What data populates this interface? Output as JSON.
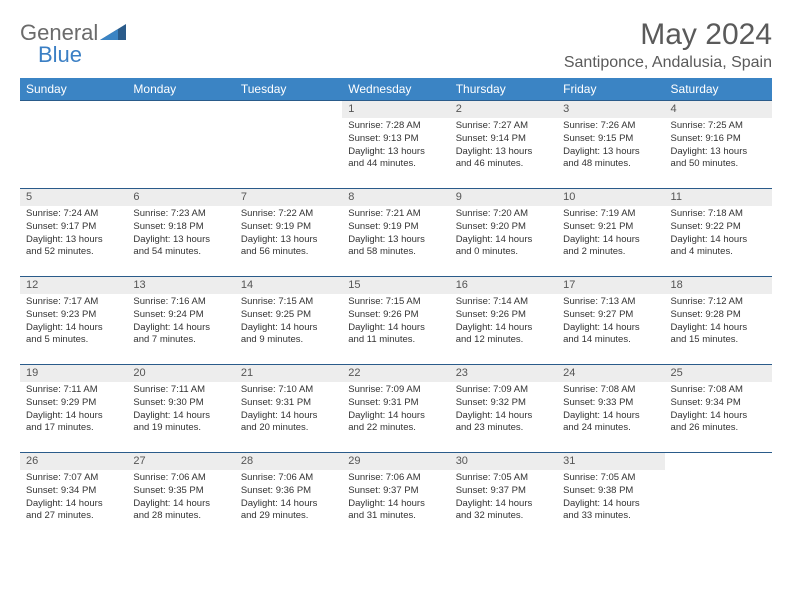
{
  "logo": {
    "word1": "General",
    "word2": "Blue"
  },
  "header": {
    "title": "May 2024",
    "location": "Santiponce, Andalusia, Spain"
  },
  "colors": {
    "header_bg": "#3b84c4",
    "header_fg": "#ffffff",
    "row_border": "#2a5b8a",
    "daynum_bg": "#ededed",
    "logo_gray": "#6b6b6b",
    "logo_blue": "#3b7fc4",
    "title_color": "#5a5a5a"
  },
  "dow": [
    "Sunday",
    "Monday",
    "Tuesday",
    "Wednesday",
    "Thursday",
    "Friday",
    "Saturday"
  ],
  "weeks": [
    [
      null,
      null,
      null,
      {
        "n": "1",
        "sr": "Sunrise: 7:28 AM",
        "ss": "Sunset: 9:13 PM",
        "d1": "Daylight: 13 hours",
        "d2": "and 44 minutes."
      },
      {
        "n": "2",
        "sr": "Sunrise: 7:27 AM",
        "ss": "Sunset: 9:14 PM",
        "d1": "Daylight: 13 hours",
        "d2": "and 46 minutes."
      },
      {
        "n": "3",
        "sr": "Sunrise: 7:26 AM",
        "ss": "Sunset: 9:15 PM",
        "d1": "Daylight: 13 hours",
        "d2": "and 48 minutes."
      },
      {
        "n": "4",
        "sr": "Sunrise: 7:25 AM",
        "ss": "Sunset: 9:16 PM",
        "d1": "Daylight: 13 hours",
        "d2": "and 50 minutes."
      }
    ],
    [
      {
        "n": "5",
        "sr": "Sunrise: 7:24 AM",
        "ss": "Sunset: 9:17 PM",
        "d1": "Daylight: 13 hours",
        "d2": "and 52 minutes."
      },
      {
        "n": "6",
        "sr": "Sunrise: 7:23 AM",
        "ss": "Sunset: 9:18 PM",
        "d1": "Daylight: 13 hours",
        "d2": "and 54 minutes."
      },
      {
        "n": "7",
        "sr": "Sunrise: 7:22 AM",
        "ss": "Sunset: 9:19 PM",
        "d1": "Daylight: 13 hours",
        "d2": "and 56 minutes."
      },
      {
        "n": "8",
        "sr": "Sunrise: 7:21 AM",
        "ss": "Sunset: 9:19 PM",
        "d1": "Daylight: 13 hours",
        "d2": "and 58 minutes."
      },
      {
        "n": "9",
        "sr": "Sunrise: 7:20 AM",
        "ss": "Sunset: 9:20 PM",
        "d1": "Daylight: 14 hours",
        "d2": "and 0 minutes."
      },
      {
        "n": "10",
        "sr": "Sunrise: 7:19 AM",
        "ss": "Sunset: 9:21 PM",
        "d1": "Daylight: 14 hours",
        "d2": "and 2 minutes."
      },
      {
        "n": "11",
        "sr": "Sunrise: 7:18 AM",
        "ss": "Sunset: 9:22 PM",
        "d1": "Daylight: 14 hours",
        "d2": "and 4 minutes."
      }
    ],
    [
      {
        "n": "12",
        "sr": "Sunrise: 7:17 AM",
        "ss": "Sunset: 9:23 PM",
        "d1": "Daylight: 14 hours",
        "d2": "and 5 minutes."
      },
      {
        "n": "13",
        "sr": "Sunrise: 7:16 AM",
        "ss": "Sunset: 9:24 PM",
        "d1": "Daylight: 14 hours",
        "d2": "and 7 minutes."
      },
      {
        "n": "14",
        "sr": "Sunrise: 7:15 AM",
        "ss": "Sunset: 9:25 PM",
        "d1": "Daylight: 14 hours",
        "d2": "and 9 minutes."
      },
      {
        "n": "15",
        "sr": "Sunrise: 7:15 AM",
        "ss": "Sunset: 9:26 PM",
        "d1": "Daylight: 14 hours",
        "d2": "and 11 minutes."
      },
      {
        "n": "16",
        "sr": "Sunrise: 7:14 AM",
        "ss": "Sunset: 9:26 PM",
        "d1": "Daylight: 14 hours",
        "d2": "and 12 minutes."
      },
      {
        "n": "17",
        "sr": "Sunrise: 7:13 AM",
        "ss": "Sunset: 9:27 PM",
        "d1": "Daylight: 14 hours",
        "d2": "and 14 minutes."
      },
      {
        "n": "18",
        "sr": "Sunrise: 7:12 AM",
        "ss": "Sunset: 9:28 PM",
        "d1": "Daylight: 14 hours",
        "d2": "and 15 minutes."
      }
    ],
    [
      {
        "n": "19",
        "sr": "Sunrise: 7:11 AM",
        "ss": "Sunset: 9:29 PM",
        "d1": "Daylight: 14 hours",
        "d2": "and 17 minutes."
      },
      {
        "n": "20",
        "sr": "Sunrise: 7:11 AM",
        "ss": "Sunset: 9:30 PM",
        "d1": "Daylight: 14 hours",
        "d2": "and 19 minutes."
      },
      {
        "n": "21",
        "sr": "Sunrise: 7:10 AM",
        "ss": "Sunset: 9:31 PM",
        "d1": "Daylight: 14 hours",
        "d2": "and 20 minutes."
      },
      {
        "n": "22",
        "sr": "Sunrise: 7:09 AM",
        "ss": "Sunset: 9:31 PM",
        "d1": "Daylight: 14 hours",
        "d2": "and 22 minutes."
      },
      {
        "n": "23",
        "sr": "Sunrise: 7:09 AM",
        "ss": "Sunset: 9:32 PM",
        "d1": "Daylight: 14 hours",
        "d2": "and 23 minutes."
      },
      {
        "n": "24",
        "sr": "Sunrise: 7:08 AM",
        "ss": "Sunset: 9:33 PM",
        "d1": "Daylight: 14 hours",
        "d2": "and 24 minutes."
      },
      {
        "n": "25",
        "sr": "Sunrise: 7:08 AM",
        "ss": "Sunset: 9:34 PM",
        "d1": "Daylight: 14 hours",
        "d2": "and 26 minutes."
      }
    ],
    [
      {
        "n": "26",
        "sr": "Sunrise: 7:07 AM",
        "ss": "Sunset: 9:34 PM",
        "d1": "Daylight: 14 hours",
        "d2": "and 27 minutes."
      },
      {
        "n": "27",
        "sr": "Sunrise: 7:06 AM",
        "ss": "Sunset: 9:35 PM",
        "d1": "Daylight: 14 hours",
        "d2": "and 28 minutes."
      },
      {
        "n": "28",
        "sr": "Sunrise: 7:06 AM",
        "ss": "Sunset: 9:36 PM",
        "d1": "Daylight: 14 hours",
        "d2": "and 29 minutes."
      },
      {
        "n": "29",
        "sr": "Sunrise: 7:06 AM",
        "ss": "Sunset: 9:37 PM",
        "d1": "Daylight: 14 hours",
        "d2": "and 31 minutes."
      },
      {
        "n": "30",
        "sr": "Sunrise: 7:05 AM",
        "ss": "Sunset: 9:37 PM",
        "d1": "Daylight: 14 hours",
        "d2": "and 32 minutes."
      },
      {
        "n": "31",
        "sr": "Sunrise: 7:05 AM",
        "ss": "Sunset: 9:38 PM",
        "d1": "Daylight: 14 hours",
        "d2": "and 33 minutes."
      },
      null
    ]
  ]
}
